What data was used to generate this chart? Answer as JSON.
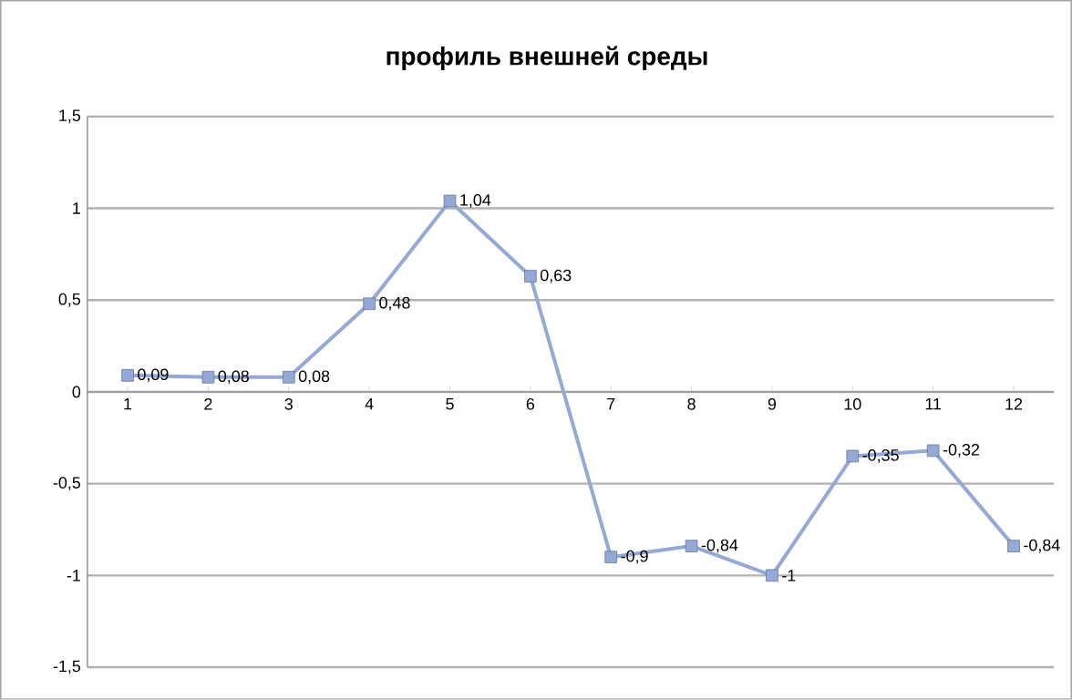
{
  "chart_data": {
    "type": "line",
    "title": "профиль внешней среды",
    "categories": [
      "1",
      "2",
      "3",
      "4",
      "5",
      "6",
      "7",
      "8",
      "9",
      "10",
      "11",
      "12"
    ],
    "values": [
      0.09,
      0.08,
      0.08,
      0.48,
      1.04,
      0.63,
      -0.9,
      -0.84,
      -1,
      -0.35,
      -0.32,
      -0.84
    ],
    "value_labels": [
      "0,09",
      "0,08",
      "0,08",
      "0,48",
      "1,04",
      "0,63",
      "-0,9",
      "-0,84",
      "-1",
      "-0,35",
      "-0,32",
      "-0,84"
    ],
    "color": "#95a9d6",
    "marker": "square",
    "grid": "y",
    "ylim": [
      -1.5,
      1.5
    ],
    "yticks": [
      {
        "value": -1.5,
        "label": "-1,5"
      },
      {
        "value": -1,
        "label": "-1"
      },
      {
        "value": -0.5,
        "label": "-0,5"
      },
      {
        "value": 0,
        "label": "0"
      },
      {
        "value": 0.5,
        "label": "0,5"
      },
      {
        "value": 1,
        "label": "1"
      },
      {
        "value": 1.5,
        "label": "1,5"
      }
    ]
  }
}
